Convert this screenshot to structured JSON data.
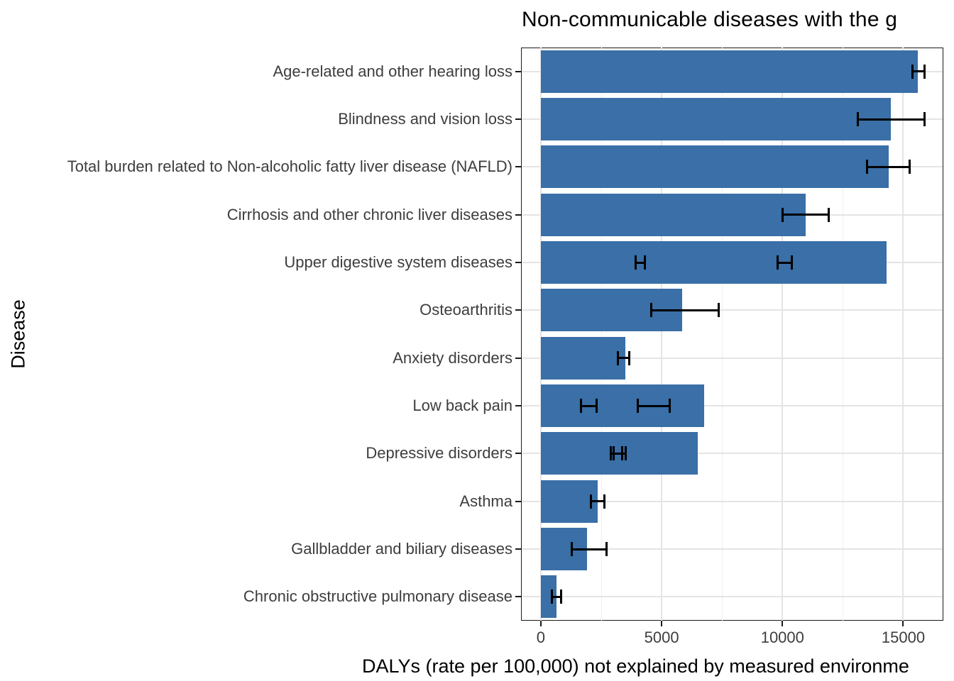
{
  "title": "Non-communicable diseases with the g",
  "chart_data": {
    "type": "bar",
    "orientation": "horizontal",
    "title": "Non-communicable diseases with the g",
    "xlabel": "DALYs (rate per 100,000) not explained by measured environme",
    "ylabel": "Disease",
    "xlim": [
      -820,
      16660
    ],
    "xticks": [
      0,
      5000,
      10000,
      15000
    ],
    "xtick_labels": [
      "0",
      "5000",
      "10000",
      "15000"
    ],
    "xminor_ticks": [
      2500,
      7500,
      12500
    ],
    "grid": true,
    "legend": "none",
    "bar_color": "#3a6fa7",
    "error_bar_color": "#000000",
    "categories": [
      "Age-related and other hearing loss",
      "Blindness and vision loss",
      "Total burden related to Non-alcoholic fatty liver disease (NAFLD)",
      "Cirrhosis and other chronic liver diseases",
      "Upper digestive system diseases",
      "Osteoarthritis",
      "Anxiety disorders",
      "Low back pain",
      "Depressive disorders",
      "Asthma",
      "Gallbladder and biliary diseases",
      "Chronic obstructive pulmonary disease"
    ],
    "values": [
      15600,
      14480,
      14400,
      10950,
      14310,
      5850,
      3500,
      6750,
      6490,
      2350,
      1910,
      640
    ],
    "error_bars": [
      [
        [
          15380,
          15890
        ]
      ],
      [
        [
          13120,
          15890
        ]
      ],
      [
        [
          13500,
          15270
        ]
      ],
      [
        [
          10000,
          11920
        ]
      ],
      [
        [
          3910,
          4300
        ],
        [
          9790,
          10380
        ]
      ],
      [
        [
          4570,
          7370
        ]
      ],
      [
        [
          3190,
          3670
        ]
      ],
      [
        [
          1660,
          2300
        ],
        [
          4010,
          5330
        ]
      ],
      [
        [
          2890,
          3360
        ],
        [
          3000,
          3500
        ]
      ],
      [
        [
          2080,
          2630
        ]
      ],
      [
        [
          1280,
          2720
        ]
      ],
      [
        [
          450,
          850
        ]
      ]
    ]
  }
}
